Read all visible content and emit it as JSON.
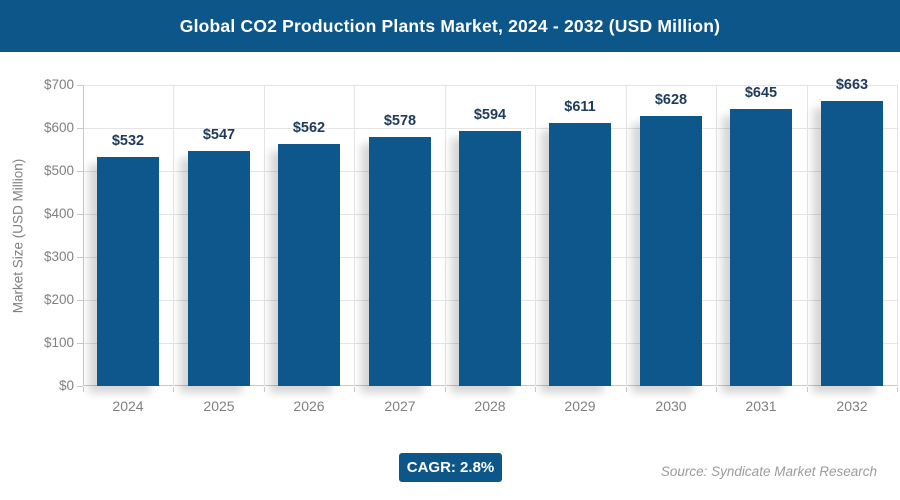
{
  "header": {
    "title": "Global CO2 Production Plants Market, 2024 - 2032 (USD Million)"
  },
  "chart_data": {
    "type": "bar",
    "title": "Global CO2 Production Plants Market, 2024 - 2032 (USD Million)",
    "categories": [
      "2024",
      "2025",
      "2026",
      "2027",
      "2028",
      "2029",
      "2030",
      "2031",
      "2032"
    ],
    "values": [
      532,
      547,
      562,
      578,
      594,
      611,
      628,
      645,
      663
    ],
    "data_labels": [
      "$532",
      "$547",
      "$562",
      "$578",
      "$594",
      "$611",
      "$628",
      "$645",
      "$663"
    ],
    "xlabel": "",
    "ylabel": "Market Size (USD Million)",
    "ylim": [
      0,
      700
    ],
    "ytick_step": 100,
    "ytick_labels": [
      "$0",
      "$100",
      "$200",
      "$300",
      "$400",
      "$500",
      "$600",
      "$700"
    ],
    "grid": true,
    "legend": "none"
  },
  "footer": {
    "cagr_label": "CAGR: 2.8%",
    "source": "Source: Syndicate Market Research"
  },
  "colors": {
    "header_bg": "#0c568a",
    "bar": "#0e578c",
    "value_label": "#1f3b5c",
    "axis_text": "#808080",
    "gridline": "#e4e4e4",
    "axis_line": "#c9c9c9",
    "badge_bg": "#0c568a",
    "source_text": "#9b9b9b"
  }
}
